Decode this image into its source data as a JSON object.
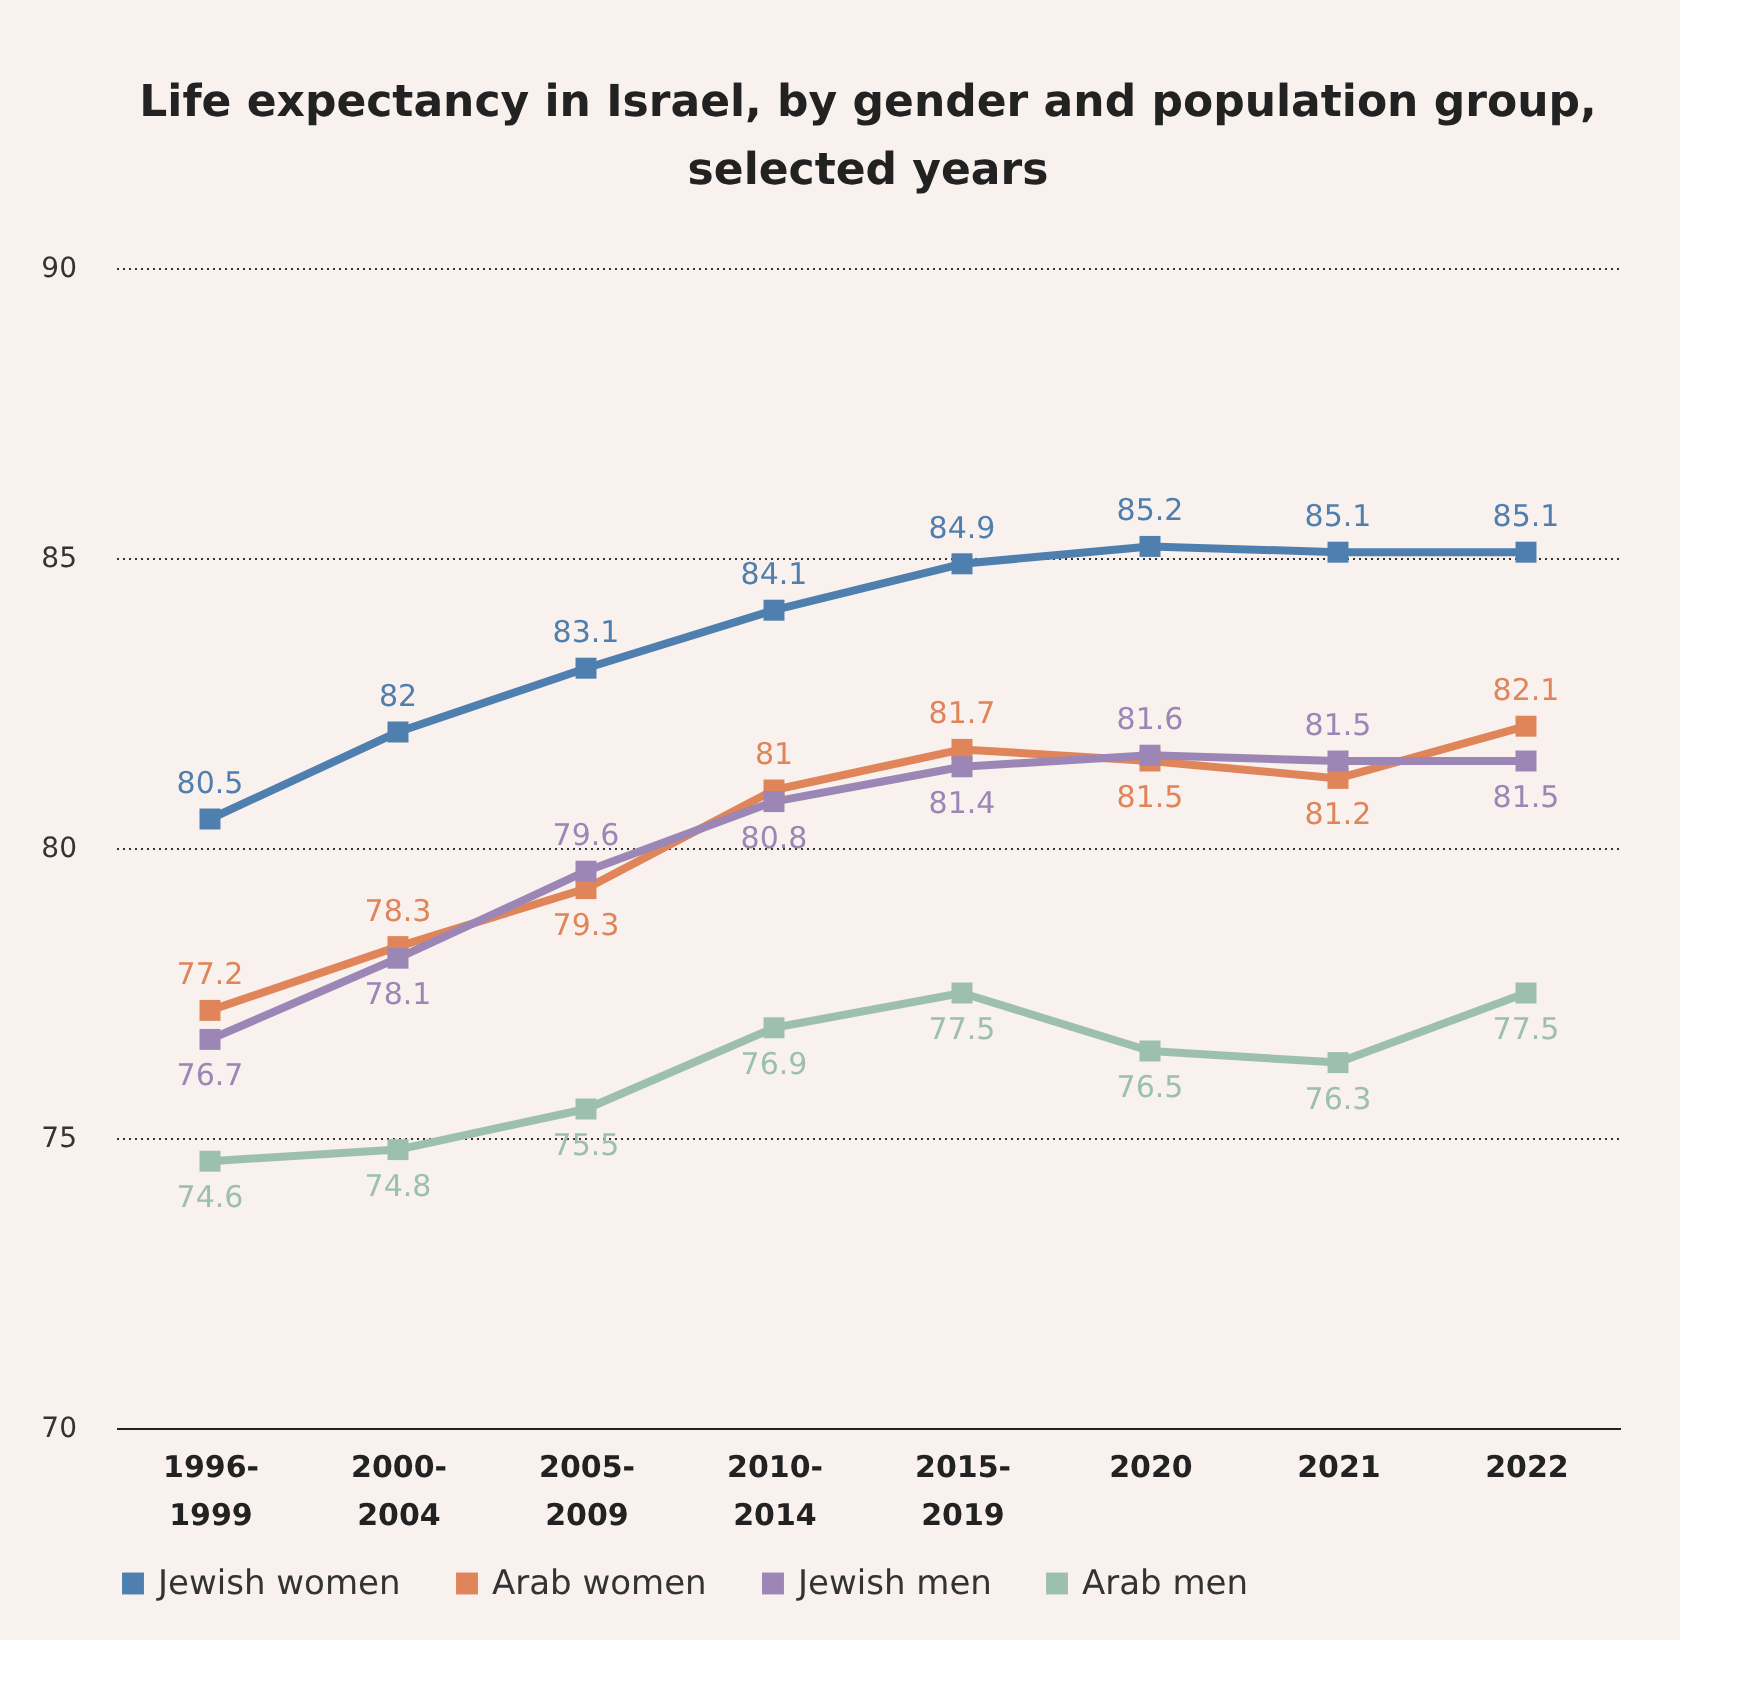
{
  "chart_data": {
    "type": "line",
    "title": "Life expectancy in Israel, by gender and population group, selected years",
    "categories": [
      "1996-1999",
      "2000-2004",
      "2005-2009",
      "2010-2014",
      "2015-2019",
      "2020",
      "2021",
      "2022"
    ],
    "series": [
      {
        "name": "Jewish women",
        "color": "#4f7fae",
        "values": [
          80.5,
          82,
          83.1,
          84.1,
          84.9,
          85.2,
          85.1,
          85.1
        ]
      },
      {
        "name": "Arab women",
        "color": "#e0845a",
        "values": [
          77.2,
          78.3,
          79.3,
          81,
          81.7,
          81.5,
          81.2,
          82.1
        ]
      },
      {
        "name": "Jewish men",
        "color": "#9b86b5",
        "values": [
          76.7,
          78.1,
          79.6,
          80.8,
          81.4,
          81.6,
          81.5,
          81.5
        ]
      },
      {
        "name": "Arab men",
        "color": "#9dc0ac",
        "values": [
          74.6,
          74.8,
          75.5,
          76.9,
          77.5,
          76.5,
          76.3,
          77.5
        ]
      }
    ],
    "ylim": [
      70,
      90
    ],
    "yticks": [
      70,
      75,
      80,
      85,
      90
    ],
    "grid": "y",
    "legend": "bottom",
    "marker": "square",
    "line_style": "solid",
    "data_labels": true
  }
}
